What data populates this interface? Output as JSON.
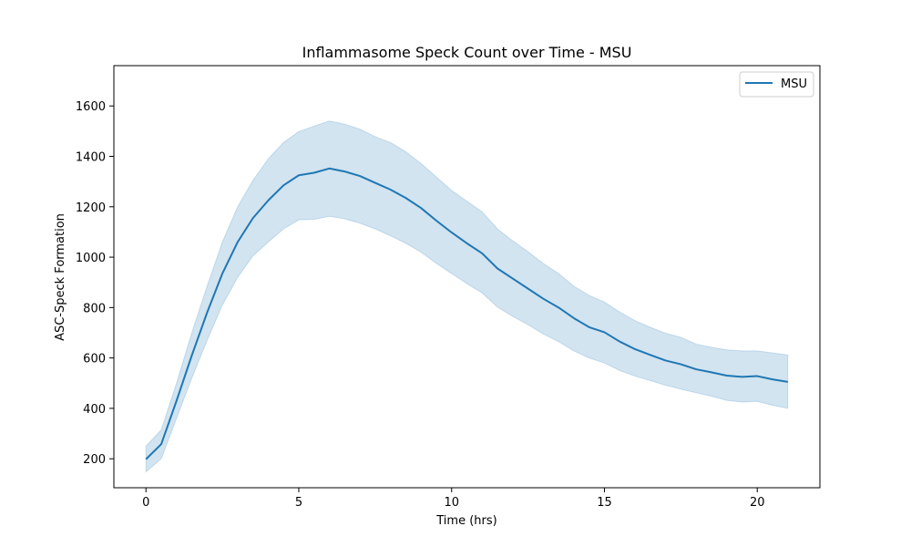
{
  "chart_data": {
    "type": "line",
    "title": "Inflammasome Speck Count over Time - MSU",
    "xlabel": "Time (hrs)",
    "ylabel": "ASC-Speck Formation",
    "xlim": [
      -1.05,
      22.05
    ],
    "ylim": [
      85,
      1760
    ],
    "xticks": [
      0,
      5,
      10,
      15,
      20
    ],
    "yticks": [
      200,
      400,
      600,
      800,
      1000,
      1200,
      1400,
      1600
    ],
    "grid": false,
    "legend": "top-right",
    "series": [
      {
        "name": "MSU",
        "color": "#1f77b4",
        "x": [
          0,
          0.5,
          1,
          1.5,
          2,
          2.5,
          3,
          3.5,
          4,
          4.5,
          5,
          5.5,
          6,
          6.5,
          7,
          7.5,
          8,
          8.5,
          9,
          9.5,
          10,
          10.5,
          11,
          11.5,
          12,
          12.5,
          13,
          13.5,
          14,
          14.5,
          15,
          15.5,
          16,
          16.5,
          17,
          17.5,
          18,
          18.5,
          19,
          19.5,
          20,
          20.5,
          21
        ],
        "values": [
          198,
          258,
          430,
          610,
          780,
          935,
          1060,
          1155,
          1225,
          1285,
          1325,
          1335,
          1352,
          1340,
          1322,
          1295,
          1268,
          1235,
          1195,
          1145,
          1098,
          1055,
          1015,
          955,
          915,
          875,
          835,
          800,
          758,
          722,
          702,
          665,
          635,
          612,
          590,
          575,
          555,
          543,
          530,
          525,
          528,
          515,
          505
        ],
        "lower": [
          148,
          200,
          360,
          520,
          670,
          810,
          920,
          1005,
          1060,
          1112,
          1148,
          1150,
          1162,
          1152,
          1135,
          1112,
          1085,
          1055,
          1020,
          975,
          935,
          895,
          858,
          802,
          765,
          732,
          695,
          665,
          628,
          600,
          580,
          550,
          528,
          510,
          492,
          476,
          462,
          448,
          432,
          425,
          428,
          412,
          400
        ],
        "upper": [
          250,
          315,
          500,
          700,
          885,
          1060,
          1200,
          1305,
          1390,
          1455,
          1498,
          1520,
          1540,
          1528,
          1508,
          1478,
          1455,
          1418,
          1372,
          1318,
          1265,
          1222,
          1180,
          1112,
          1065,
          1022,
          975,
          935,
          885,
          848,
          822,
          782,
          748,
          722,
          698,
          682,
          655,
          642,
          632,
          628,
          628,
          620,
          612
        ]
      }
    ]
  }
}
